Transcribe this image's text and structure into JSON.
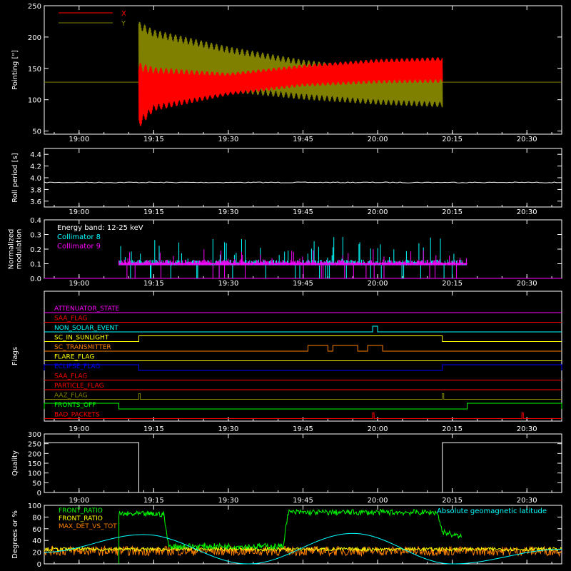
{
  "time_ticks": [
    "19:00",
    "19:15",
    "19:30",
    "19:45",
    "20:00",
    "20:15",
    "20:30"
  ],
  "colors": {
    "background": "#000000",
    "axes": "#ffffff",
    "x_series": "#ff0000",
    "y_series": "#808000",
    "cyan": "#00ffff",
    "magenta": "#ff00ff",
    "green": "#00ff00",
    "orange": "#ff8000",
    "yellow": "#ffff00",
    "blue": "#0000ff"
  },
  "chart_data": [
    {
      "id": "pointing",
      "type": "line",
      "ylabel": "Pointing [\"]",
      "ylim": [
        45,
        250
      ],
      "yticks": [
        50,
        100,
        150,
        200,
        250
      ],
      "xlim": [
        "18:53",
        "20:37"
      ],
      "series": [
        {
          "name": "X",
          "color": "#ff0000",
          "x": [
            "19:12",
            "19:15",
            "19:30",
            "19:45",
            "20:00",
            "20:13"
          ],
          "y_min": [
            55,
            82,
            107,
            121,
            126,
            127
          ],
          "y_max": [
            160,
            152,
            143,
            156,
            165,
            168
          ]
        },
        {
          "name": "Y",
          "color": "#808000",
          "x": [
            "19:12",
            "19:15",
            "19:30",
            "19:45",
            "20:00",
            "20:13"
          ],
          "y_min": [
            134,
            127,
            112,
            100,
            92,
            88
          ],
          "y_max": [
            225,
            212,
            185,
            164,
            150,
            147
          ]
        }
      ],
      "baseline": 128
    },
    {
      "id": "roll",
      "type": "line",
      "ylabel": "Roll period [s]",
      "ylim": [
        3.5,
        4.5
      ],
      "yticks": [
        3.6,
        3.8,
        4.0,
        4.2,
        4.4
      ],
      "series": [
        {
          "name": "",
          "x": [
            "18:53",
            "20:37"
          ],
          "y": [
            3.92,
            3.92
          ]
        }
      ]
    },
    {
      "id": "modulation",
      "type": "line",
      "ylabel": "Normalized modulation",
      "ylim": [
        0,
        0.4
      ],
      "yticks": [
        0.0,
        0.1,
        0.2,
        0.3,
        0.4
      ],
      "annotation": "Energy band: 12-25 keV",
      "series": [
        {
          "name": "Collimator 8",
          "color": "#00ffff",
          "x_start": "19:08",
          "x_end": "20:18",
          "typical": 0.1,
          "peak": 0.3
        },
        {
          "name": "Collimator 9",
          "color": "#ff00ff",
          "x_start": "19:08",
          "x_end": "20:18",
          "typical": 0.1,
          "peak": 0.2
        }
      ]
    },
    {
      "id": "flags",
      "type": "line",
      "ylabel": "Flags",
      "series": [
        {
          "name": "ATTENUATOR_STATE",
          "color": "#ff00ff",
          "intervals": []
        },
        {
          "name": "SAA_FLAG",
          "color": "#ff0000",
          "intervals": []
        },
        {
          "name": "NON_SOLAR_EVENT",
          "color": "#00ffff",
          "intervals": [
            [
              "19:59",
              "20:00"
            ]
          ]
        },
        {
          "name": "SC_IN_SUNLIGHT",
          "color": "#ffff00",
          "intervals": [
            [
              "19:12",
              "20:13"
            ]
          ]
        },
        {
          "name": "SC_TRANSMITTER",
          "color": "#ff8000",
          "intervals": [
            [
              "19:46",
              "19:50"
            ],
            [
              "19:51",
              "19:56"
            ],
            [
              "19:58",
              "20:01"
            ]
          ]
        },
        {
          "name": "FLARE_FLAG",
          "color": "#ffff00",
          "intervals": []
        },
        {
          "name": "ECLIPSE_FLAG",
          "color": "#0000ff",
          "intervals": [
            [
              "18:53",
              "19:12"
            ],
            [
              "20:13",
              "20:37"
            ]
          ]
        },
        {
          "name": "SAA_FLAG",
          "color": "#ff0000",
          "intervals": []
        },
        {
          "name": "PARTICLE_FLAG",
          "color": "#ff0000",
          "intervals": []
        },
        {
          "name": "AAZ_FLAG",
          "color": "#808000",
          "intervals": [
            [
              "19:12",
              "19:12"
            ],
            [
              "20:13",
              "20:13"
            ]
          ]
        },
        {
          "name": "FRONTS_OFF",
          "color": "#00ff00",
          "intervals": [
            [
              "18:53",
              "19:08"
            ],
            [
              "20:18",
              "20:37"
            ]
          ]
        },
        {
          "name": "BAD_PACKETS",
          "color": "#ff0000",
          "intervals": [
            [
              "19:59",
              "19:59"
            ],
            [
              "20:29",
              "20:29"
            ]
          ]
        }
      ]
    },
    {
      "id": "quality",
      "type": "line",
      "ylabel": "Quality",
      "ylim": [
        0,
        300
      ],
      "yticks": [
        0,
        50,
        100,
        150,
        200,
        250,
        300
      ],
      "series": [
        {
          "name": "",
          "x": [
            "18:53",
            "19:12",
            "19:12",
            "20:13",
            "20:13",
            "20:37"
          ],
          "y": [
            255,
            255,
            0,
            0,
            255,
            255
          ]
        }
      ]
    },
    {
      "id": "ratios",
      "type": "line",
      "ylabel": "Degrees or %",
      "ylim": [
        0,
        100
      ],
      "yticks": [
        0,
        20,
        40,
        60,
        80,
        100
      ],
      "annotation": "Absolute geomagnetic latitude",
      "series": [
        {
          "name": "FRONT_RATIO",
          "color": "#00ff00",
          "x": [
            "19:08",
            "19:17",
            "19:18",
            "19:41",
            "19:42",
            "20:12",
            "20:13",
            "20:17"
          ],
          "y": [
            85,
            85,
            30,
            30,
            88,
            88,
            55,
            45
          ]
        },
        {
          "name": "FRONT_RATIO",
          "color": "#ffff00",
          "x": [
            "18:53",
            "20:37"
          ],
          "y": [
            25,
            25
          ]
        },
        {
          "name": "MAX_DET_VS_TOT",
          "color": "#ff8000",
          "x": [
            "18:53",
            "20:37"
          ],
          "y": [
            22,
            22
          ]
        },
        {
          "name": "Absolute geomagnetic latitude",
          "color": "#00ffff",
          "x": [
            "18:53",
            "19:13",
            "19:34",
            "19:55",
            "20:15",
            "20:37"
          ],
          "y": [
            20,
            50,
            0,
            52,
            0,
            25
          ]
        }
      ]
    }
  ]
}
